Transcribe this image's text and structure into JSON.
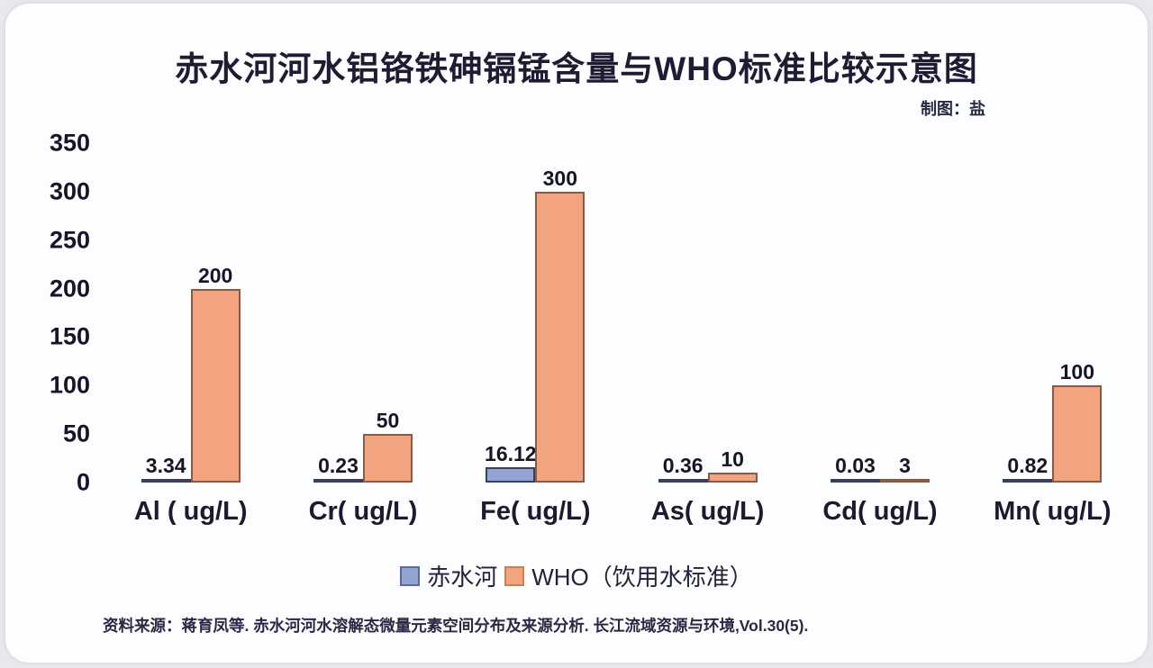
{
  "title": "赤水河河水铝铬铁砷镉锰含量与WHO标准比较示意图",
  "credit": "制图：盐",
  "source_note": "资料来源：蒋育凤等. 赤水河河水溶解态微量元素空间分布及来源分析. 长江流域资源与环境,Vol.30(5).",
  "colors": {
    "chishui_fill": "#93a4d2",
    "chishui_border": "#39405e",
    "who_fill": "#f2a47e",
    "who_border": "#8a5a44",
    "text": "#1d1c33",
    "card_bg": "#fcfdfe",
    "page_bg": "#e7e9ec"
  },
  "legend": [
    {
      "name": "chishui",
      "label": "赤水河",
      "fill": "#93a4d2",
      "border": "#5a6a9a"
    },
    {
      "name": "who",
      "label": "WHO（饮用水标准）",
      "fill": "#f2a47e",
      "border": "#c8814f"
    }
  ],
  "chart_data": {
    "type": "bar",
    "title": "赤水河河水铝铬铁砷镉锰含量与WHO标准比较示意图",
    "categories": [
      "Al ( ug/L)",
      "Cr( ug/L)",
      "Fe( ug/L)",
      "As( ug/L)",
      "Cd( ug/L)",
      "Mn( ug/L)"
    ],
    "series": [
      {
        "name": "赤水河",
        "fill": "#93a4d2",
        "border": "#39405e",
        "values": [
          3.34,
          0.23,
          16.12,
          0.36,
          0.03,
          0.82
        ],
        "labels": [
          "3.34",
          "0.23",
          "16.12",
          "0.36",
          "0.03",
          "0.82"
        ]
      },
      {
        "name": "WHO（饮用水标准）",
        "fill": "#f2a47e",
        "border": "#8a5a44",
        "values": [
          200,
          50,
          300,
          10,
          3,
          100
        ],
        "labels": [
          "200",
          "50",
          "300",
          "10",
          "3",
          "100"
        ]
      }
    ],
    "y_ticks": [
      350,
      300,
      250,
      200,
      150,
      100,
      50,
      0
    ],
    "ylim": [
      0,
      350
    ],
    "xlabel": "",
    "ylabel": "",
    "grid": false,
    "legend_position": "bottom"
  }
}
